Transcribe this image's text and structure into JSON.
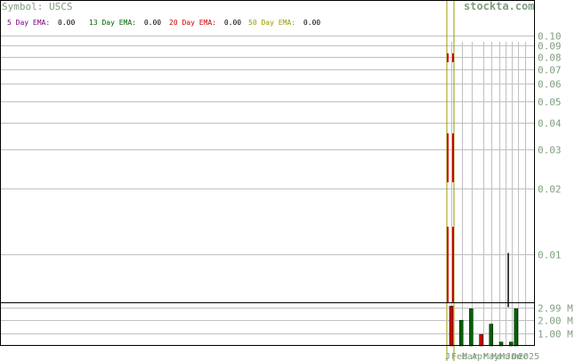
{
  "header": {
    "symbol_label": "Symbol: USCS",
    "brand": "stockta.com"
  },
  "legend": [
    {
      "label": "5 Day EMA:",
      "value": "0.00",
      "color": "#800080"
    },
    {
      "label": "13 Day EMA:",
      "value": "0.00",
      "color": "#006400"
    },
    {
      "label": "20 Day EMA:",
      "value": "0.00",
      "color": "#cc0000"
    },
    {
      "label": "50 Day EMA:",
      "value": "0.00",
      "color": "#999900"
    }
  ],
  "colors": {
    "frame": "#000000",
    "grid": "#c0c0c0",
    "axis_text": "#7f9f7f",
    "legend_value": "#000000",
    "volume_up": "#006400",
    "volume_down": "#cc0000",
    "ema_20": "#cc0000",
    "ema_50": "#999900"
  },
  "chart_data": [
    {
      "type": "line",
      "title": "Symbol: USCS",
      "yscale": "log",
      "ylim": [
        0.006,
        0.1
      ],
      "y_tick_labels": [
        "0.10",
        "0.09",
        "0.08",
        "0.07",
        "0.06",
        "0.05",
        "0.04",
        "0.03",
        "0.02",
        "0.01"
      ],
      "y_ticks": [
        0.1,
        0.09,
        0.08,
        0.07,
        0.06,
        0.05,
        0.04,
        0.03,
        0.02,
        0.01
      ],
      "x_tick_labels": [
        "J",
        "Feb",
        "Mar",
        "Apr",
        "May",
        "Mar",
        "Mar",
        "Jun",
        "Dec",
        "2025"
      ],
      "series": [
        {
          "name": "5 Day EMA",
          "values": [
            0.0
          ]
        },
        {
          "name": "13 Day EMA",
          "values": [
            0.0
          ]
        },
        {
          "name": "20 Day EMA",
          "values": [
            0.0
          ]
        },
        {
          "name": "50 Day EMA",
          "values": [
            0.0
          ]
        }
      ],
      "price_spike": {
        "low": 0.0083,
        "high": 0.0101
      }
    },
    {
      "type": "bar",
      "ylim": [
        0,
        3.4
      ],
      "y_tick_labels": [
        "2.99 M",
        "2.00 M",
        "1.00 M"
      ],
      "y_ticks": [
        2.99,
        2.0,
        1.0
      ],
      "unit": "M",
      "values": [
        3.1,
        0.0,
        2.0,
        0.0,
        2.9,
        0.0,
        0.9,
        0.0,
        1.7,
        0.0,
        0.3,
        0.0,
        0.3,
        2.9
      ],
      "direction": [
        "down",
        "up",
        "up",
        "up",
        "up",
        "down",
        "down",
        "up",
        "up",
        "up",
        "up",
        "up",
        "up",
        "up"
      ]
    }
  ]
}
